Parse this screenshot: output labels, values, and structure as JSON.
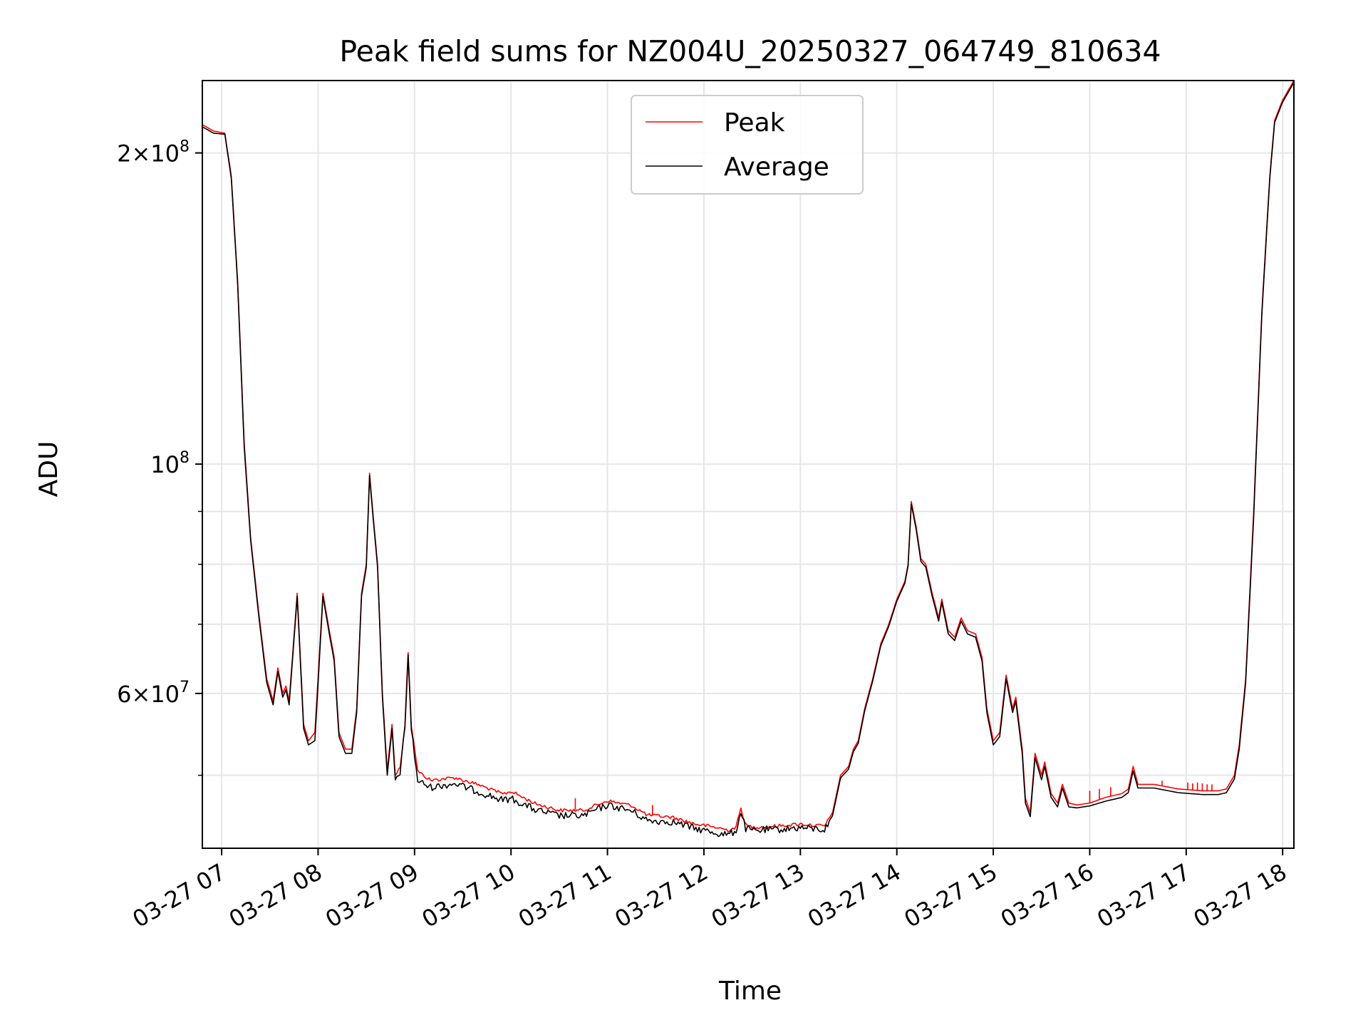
{
  "chart_data": {
    "type": "line",
    "title": "Peak field sums for NZ004U_20250327_064749_810634",
    "xlabel": "Time",
    "ylabel": "ADU",
    "yscale": "log",
    "xlim": [
      "03-27 06:48",
      "03-27 18:07"
    ],
    "ylim": [
      42500000,
      235000000
    ],
    "grid": true,
    "legend": {
      "position": "upper center",
      "entries": [
        "Peak",
        "Average"
      ]
    },
    "x_ticks": [
      "03-27 07",
      "03-27 08",
      "03-27 09",
      "03-27 10",
      "03-27 11",
      "03-27 12",
      "03-27 13",
      "03-27 14",
      "03-27 15",
      "03-27 16",
      "03-27 17",
      "03-27 18"
    ],
    "y_ticks": [
      {
        "value": 200000000,
        "mantissa": "2",
        "exponent": "8"
      },
      {
        "value": 100000000,
        "mantissa": "",
        "exponent": "8"
      },
      {
        "value": 60000000,
        "mantissa": "6",
        "exponent": "7"
      }
    ],
    "y_minor_ticks": [
      50000000,
      70000000,
      80000000,
      90000000
    ],
    "series": [
      {
        "name": "Peak",
        "color": "#ff0000",
        "points": [
          [
            "06:48",
            213000000
          ],
          [
            "06:55",
            210000000
          ],
          [
            "07:02",
            209000000
          ],
          [
            "07:06",
            190000000
          ],
          [
            "07:10",
            150000000
          ],
          [
            "07:14",
            105000000
          ],
          [
            "07:18",
            85000000
          ],
          [
            "07:23",
            72000000
          ],
          [
            "07:28",
            62000000
          ],
          [
            "07:32",
            59000000
          ],
          [
            "07:35",
            63500000
          ],
          [
            "07:38",
            60000000
          ],
          [
            "07:40",
            61000000
          ],
          [
            "07:42",
            59000000
          ],
          [
            "07:47",
            75000000
          ],
          [
            "07:51",
            56000000
          ],
          [
            "07:54",
            54000000
          ],
          [
            "07:58",
            55000000
          ],
          [
            "08:03",
            75000000
          ],
          [
            "08:07",
            69000000
          ],
          [
            "08:10",
            65000000
          ],
          [
            "08:13",
            55000000
          ],
          [
            "08:17",
            53000000
          ],
          [
            "08:21",
            53000000
          ],
          [
            "08:24",
            58000000
          ],
          [
            "08:27",
            75000000
          ],
          [
            "08:30",
            80000000
          ],
          [
            "08:32",
            98000000
          ],
          [
            "08:34",
            90000000
          ],
          [
            "08:37",
            80000000
          ],
          [
            "08:40",
            60000000
          ],
          [
            "08:43",
            50500000
          ],
          [
            "08:46",
            56000000
          ],
          [
            "08:48",
            50000000
          ],
          [
            "08:51",
            51000000
          ],
          [
            "08:54",
            56000000
          ],
          [
            "08:56",
            66000000
          ],
          [
            "08:58",
            56000000
          ],
          [
            "09:02",
            50500000
          ],
          [
            "09:10",
            49500000
          ],
          [
            "09:25",
            49800000
          ],
          [
            "09:40",
            49000000
          ],
          [
            "09:55",
            48000000
          ],
          [
            "10:00",
            48300000
          ],
          [
            "10:15",
            47000000
          ],
          [
            "10:30",
            46300000
          ],
          [
            "10:45",
            46300000
          ],
          [
            "11:00",
            47300000
          ],
          [
            "11:15",
            46800000
          ],
          [
            "11:25",
            45800000
          ],
          [
            "11:40",
            45600000
          ],
          [
            "11:55",
            44900000
          ],
          [
            "12:10",
            44500000
          ],
          [
            "12:15",
            44300000
          ],
          [
            "12:20",
            44600000
          ],
          [
            "12:23",
            46500000
          ],
          [
            "12:26",
            44800000
          ],
          [
            "12:30",
            44600000
          ],
          [
            "12:45",
            44700000
          ],
          [
            "13:00",
            44900000
          ],
          [
            "13:15",
            44700000
          ],
          [
            "13:20",
            46000000
          ],
          [
            "13:25",
            50000000
          ],
          [
            "13:30",
            51000000
          ],
          [
            "13:33",
            53000000
          ],
          [
            "13:36",
            54000000
          ],
          [
            "13:40",
            58000000
          ],
          [
            "13:45",
            62000000
          ],
          [
            "13:50",
            67000000
          ],
          [
            "13:55",
            70000000
          ],
          [
            "14:00",
            74000000
          ],
          [
            "14:05",
            77000000
          ],
          [
            "14:07",
            80000000
          ],
          [
            "14:09",
            92000000
          ],
          [
            "14:12",
            87000000
          ],
          [
            "14:15",
            81000000
          ],
          [
            "14:18",
            80000000
          ],
          [
            "14:22",
            75000000
          ],
          [
            "14:26",
            71000000
          ],
          [
            "14:28",
            74000000
          ],
          [
            "14:32",
            69000000
          ],
          [
            "14:36",
            68000000
          ],
          [
            "14:40",
            71000000
          ],
          [
            "14:44",
            69000000
          ],
          [
            "14:49",
            68500000
          ],
          [
            "14:53",
            65000000
          ],
          [
            "14:56",
            58000000
          ],
          [
            "15:00",
            54000000
          ],
          [
            "15:04",
            55000000
          ],
          [
            "15:08",
            62500000
          ],
          [
            "15:12",
            58000000
          ],
          [
            "15:14",
            59500000
          ],
          [
            "15:18",
            53000000
          ],
          [
            "15:20",
            47500000
          ],
          [
            "15:23",
            46000000
          ],
          [
            "15:26",
            52500000
          ],
          [
            "15:30",
            50000000
          ],
          [
            "15:32",
            51500000
          ],
          [
            "15:36",
            48000000
          ],
          [
            "15:40",
            47000000
          ],
          [
            "15:43",
            49000000
          ],
          [
            "15:47",
            47000000
          ],
          [
            "15:52",
            46800000
          ],
          [
            "16:00",
            47000000
          ],
          [
            "16:10",
            47600000
          ],
          [
            "16:20",
            48000000
          ],
          [
            "16:24",
            48500000
          ],
          [
            "16:27",
            51000000
          ],
          [
            "16:30",
            49000000
          ],
          [
            "16:40",
            49000000
          ],
          [
            "16:55",
            48500000
          ],
          [
            "17:10",
            48300000
          ],
          [
            "17:20",
            48300000
          ],
          [
            "17:25",
            48500000
          ],
          [
            "17:30",
            50000000
          ],
          [
            "17:33",
            53500000
          ],
          [
            "17:37",
            62000000
          ],
          [
            "17:42",
            90000000
          ],
          [
            "17:47",
            140000000
          ],
          [
            "17:52",
            190000000
          ],
          [
            "17:55",
            215000000
          ],
          [
            "18:00",
            225000000
          ],
          [
            "18:07",
            235000000
          ]
        ]
      },
      {
        "name": "Average",
        "color": "#000000",
        "points": [
          [
            "06:48",
            212000000
          ],
          [
            "06:55",
            209000000
          ],
          [
            "07:02",
            208500000
          ],
          [
            "07:06",
            189000000
          ],
          [
            "07:10",
            149000000
          ],
          [
            "07:14",
            104000000
          ],
          [
            "07:18",
            84500000
          ],
          [
            "07:23",
            71500000
          ],
          [
            "07:28",
            61500000
          ],
          [
            "07:32",
            58500000
          ],
          [
            "07:35",
            63000000
          ],
          [
            "07:38",
            59500000
          ],
          [
            "07:40",
            60500000
          ],
          [
            "07:42",
            58500000
          ],
          [
            "07:47",
            74500000
          ],
          [
            "07:51",
            55500000
          ],
          [
            "07:54",
            53500000
          ],
          [
            "07:58",
            54000000
          ],
          [
            "08:03",
            74500000
          ],
          [
            "08:07",
            68500000
          ],
          [
            "08:10",
            64500000
          ],
          [
            "08:13",
            54500000
          ],
          [
            "08:17",
            52500000
          ],
          [
            "08:21",
            52500000
          ],
          [
            "08:24",
            57500000
          ],
          [
            "08:27",
            74500000
          ],
          [
            "08:30",
            79500000
          ],
          [
            "08:32",
            97500000
          ],
          [
            "08:34",
            89500000
          ],
          [
            "08:37",
            79500000
          ],
          [
            "08:40",
            59500000
          ],
          [
            "08:43",
            50000000
          ],
          [
            "08:46",
            55500000
          ],
          [
            "08:48",
            49500000
          ],
          [
            "08:51",
            50500000
          ],
          [
            "08:54",
            55500000
          ],
          [
            "08:56",
            65500000
          ],
          [
            "08:58",
            55500000
          ],
          [
            "09:02",
            49500000
          ],
          [
            "09:10",
            48800000
          ],
          [
            "09:25",
            49200000
          ],
          [
            "09:40",
            48300000
          ],
          [
            "09:55",
            47400000
          ],
          [
            "10:00",
            47600000
          ],
          [
            "10:15",
            46400000
          ],
          [
            "10:30",
            45800000
          ],
          [
            "10:45",
            45800000
          ],
          [
            "11:00",
            46900000
          ],
          [
            "11:15",
            46300000
          ],
          [
            "11:25",
            45300000
          ],
          [
            "11:40",
            45200000
          ],
          [
            "11:55",
            44500000
          ],
          [
            "12:10",
            44000000
          ],
          [
            "12:15",
            43900000
          ],
          [
            "12:20",
            44300000
          ],
          [
            "12:23",
            46200000
          ],
          [
            "12:26",
            44500000
          ],
          [
            "12:30",
            44300000
          ],
          [
            "12:45",
            44400000
          ],
          [
            "13:00",
            44600000
          ],
          [
            "13:15",
            44400000
          ],
          [
            "13:20",
            45700000
          ],
          [
            "13:25",
            49700000
          ],
          [
            "13:30",
            50700000
          ],
          [
            "13:33",
            52700000
          ],
          [
            "13:36",
            53700000
          ],
          [
            "13:40",
            57700000
          ],
          [
            "13:45",
            61700000
          ],
          [
            "13:50",
            66700000
          ],
          [
            "13:55",
            69700000
          ],
          [
            "14:00",
            73700000
          ],
          [
            "14:05",
            76700000
          ],
          [
            "14:07",
            79700000
          ],
          [
            "14:09",
            91500000
          ],
          [
            "14:12",
            86500000
          ],
          [
            "14:15",
            80500000
          ],
          [
            "14:18",
            79500000
          ],
          [
            "14:22",
            74500000
          ],
          [
            "14:26",
            70500000
          ],
          [
            "14:28",
            73500000
          ],
          [
            "14:32",
            68500000
          ],
          [
            "14:36",
            67500000
          ],
          [
            "14:40",
            70500000
          ],
          [
            "14:44",
            68500000
          ],
          [
            "14:49",
            68000000
          ],
          [
            "14:53",
            64500000
          ],
          [
            "14:56",
            57500000
          ],
          [
            "15:00",
            53500000
          ],
          [
            "15:04",
            54500000
          ],
          [
            "15:08",
            62000000
          ],
          [
            "15:12",
            57500000
          ],
          [
            "15:14",
            59000000
          ],
          [
            "15:18",
            52500000
          ],
          [
            "15:20",
            47000000
          ],
          [
            "15:23",
            45600000
          ],
          [
            "15:26",
            52000000
          ],
          [
            "15:30",
            49500000
          ],
          [
            "15:32",
            51000000
          ],
          [
            "15:36",
            47600000
          ],
          [
            "15:40",
            46600000
          ],
          [
            "15:43",
            48600000
          ],
          [
            "15:47",
            46600000
          ],
          [
            "15:52",
            46500000
          ],
          [
            "16:00",
            46700000
          ],
          [
            "16:10",
            47200000
          ],
          [
            "16:20",
            47600000
          ],
          [
            "16:24",
            48100000
          ],
          [
            "16:27",
            50500000
          ],
          [
            "16:30",
            48600000
          ],
          [
            "16:40",
            48600000
          ],
          [
            "16:55",
            48100000
          ],
          [
            "17:10",
            47900000
          ],
          [
            "17:20",
            47900000
          ],
          [
            "17:25",
            48100000
          ],
          [
            "17:30",
            49600000
          ],
          [
            "17:33",
            53000000
          ],
          [
            "17:37",
            61500000
          ],
          [
            "17:42",
            89000000
          ],
          [
            "17:47",
            139000000
          ],
          [
            "17:52",
            189000000
          ],
          [
            "17:55",
            214000000
          ],
          [
            "18:00",
            224000000
          ],
          [
            "18:07",
            234000000
          ]
        ]
      }
    ],
    "spikes": [
      [
        "10:40",
        47500000
      ],
      [
        "11:28",
        46800000
      ],
      [
        "16:00",
        48300000
      ],
      [
        "16:06",
        48500000
      ],
      [
        "16:13",
        48700000
      ],
      [
        "16:45",
        49400000
      ],
      [
        "17:01",
        49200000
      ],
      [
        "17:04",
        49100000
      ],
      [
        "17:07",
        49200000
      ],
      [
        "17:10",
        49100000
      ],
      [
        "17:13",
        49000000
      ],
      [
        "17:16",
        49000000
      ]
    ]
  }
}
